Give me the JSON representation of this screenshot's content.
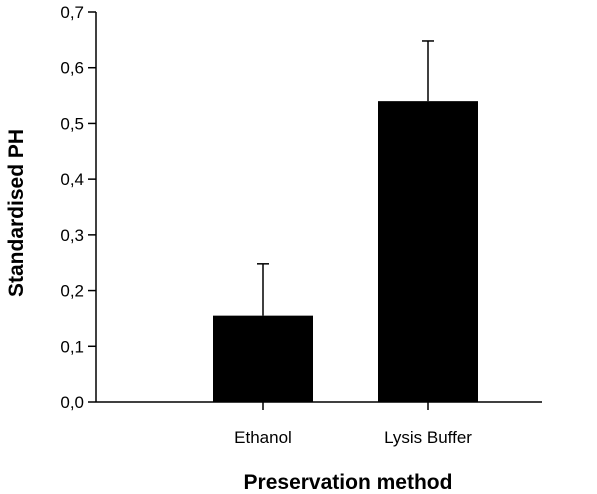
{
  "chart_data": {
    "type": "bar",
    "title": "",
    "xlabel": "Preservation method",
    "ylabel": "Standardised PH",
    "categories": [
      "Ethanol",
      "Lysis Buffer"
    ],
    "values": [
      0.155,
      0.54
    ],
    "error_upper": [
      0.248,
      0.648
    ],
    "ylim": [
      0,
      0.7
    ],
    "yticks": [
      0.0,
      0.1,
      0.2,
      0.3,
      0.4,
      0.5,
      0.6,
      0.7
    ],
    "ytick_labels": [
      "0,0",
      "0,1",
      "0,2",
      "0,3",
      "0,4",
      "0,5",
      "0,6",
      "0,7"
    ],
    "grid": false,
    "bar_color": "#000000"
  }
}
